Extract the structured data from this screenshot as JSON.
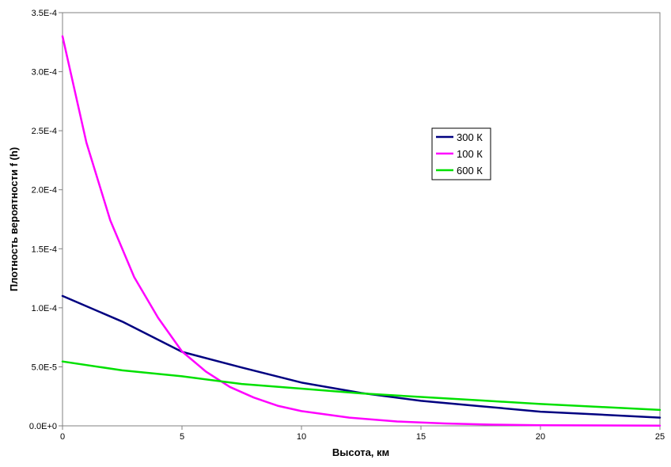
{
  "chart_data": {
    "type": "line",
    "title": "",
    "xlabel": "Высота, км",
    "ylabel": "Плотность вероятности f (h)",
    "xlim": [
      0,
      25
    ],
    "ylim": [
      0,
      0.00035
    ],
    "x_ticks": [
      "0",
      "5",
      "10",
      "15",
      "20",
      "25"
    ],
    "y_ticks": [
      "0.0E+0",
      "5.0E-5",
      "1.0E-4",
      "1.5E-4",
      "2.0E-4",
      "2.5E-4",
      "3.0E-4",
      "3.5E-4"
    ],
    "grid": false,
    "legend_position": "center-right",
    "series": [
      {
        "name": "300 К",
        "color": "#000080",
        "x": [
          0,
          2.5,
          5,
          7.5,
          10,
          12.5,
          15,
          17.5,
          20,
          22.5,
          25
        ],
        "values": [
          0.00011,
          8.83e-05,
          6.27e-05,
          4.94e-05,
          3.67e-05,
          2.78e-05,
          2.12e-05,
          1.66e-05,
          1.2e-05,
          9.5e-06,
          7e-06
        ]
      },
      {
        "name": "100 К",
        "color": "#ff00ff",
        "x": [
          0,
          1,
          2,
          3,
          4,
          5,
          6,
          7,
          8,
          9,
          10,
          12,
          14,
          16,
          18,
          20,
          25
        ],
        "values": [
          0.00033,
          0.00024,
          0.000174,
          0.000126,
          9.15e-05,
          6.3e-05,
          4.6e-05,
          3.3e-05,
          2.4e-05,
          1.7e-05,
          1.25e-05,
          7e-06,
          3.7e-06,
          2e-06,
          1e-06,
          5e-07,
          2e-07
        ]
      },
      {
        "name": "600 К",
        "color": "#00e000",
        "x": [
          0,
          2.5,
          5,
          7.5,
          10,
          12.5,
          15,
          17.5,
          20,
          22.5,
          25
        ],
        "values": [
          5.45e-05,
          4.7e-05,
          4.2e-05,
          3.55e-05,
          3.15e-05,
          2.75e-05,
          2.45e-05,
          2.15e-05,
          1.85e-05,
          1.6e-05,
          1.35e-05
        ]
      }
    ]
  }
}
